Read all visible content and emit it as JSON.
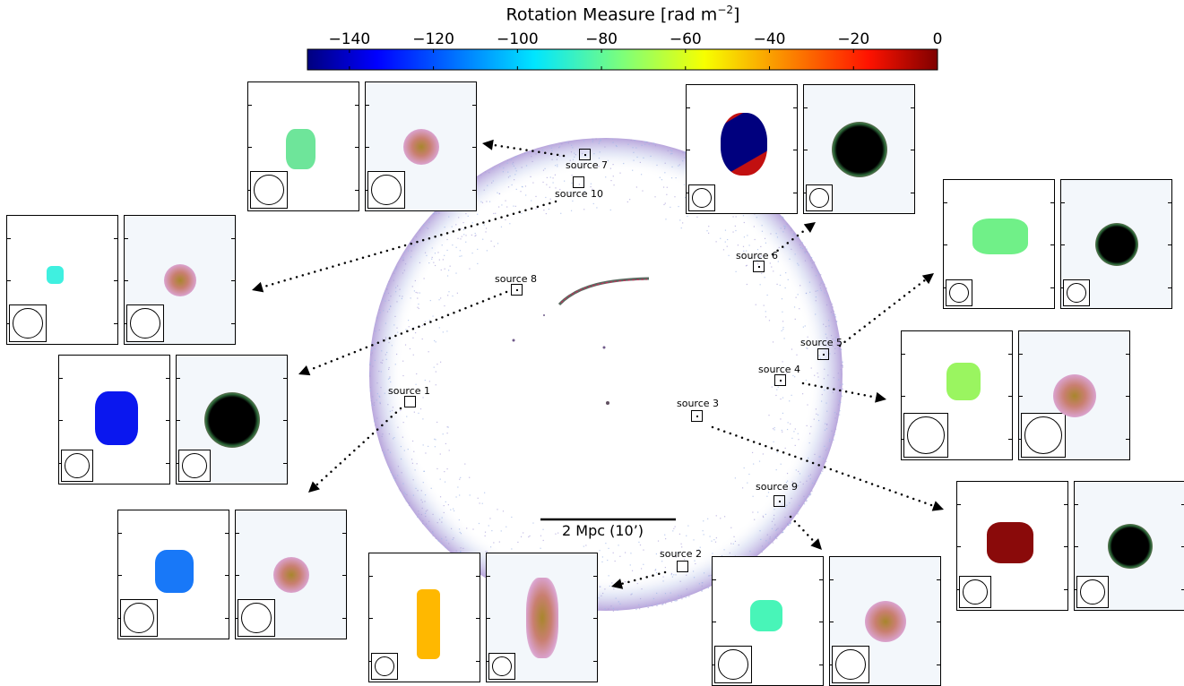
{
  "colorbar": {
    "title": "Rotation Measure [rad m",
    "title_sup": "−2",
    "title_end": "]",
    "ticks": [
      "−140",
      "−120",
      "−100",
      "−80",
      "−60",
      "−40",
      "−20",
      "0"
    ],
    "range": [
      -150,
      0
    ],
    "colormap": "jet"
  },
  "scale_bar": {
    "label": "2 Mpc (10’)"
  },
  "sources": [
    {
      "label": "source 7",
      "rm_color": "#6ee59a"
    },
    {
      "label": "source 10",
      "rm_color": "#3ff0e0"
    },
    {
      "label": "source 6",
      "rm_color": "#00007e"
    },
    {
      "label": "source 8",
      "rm_color": "#0a17ef"
    },
    {
      "label": "source 5",
      "rm_color": "#70f088"
    },
    {
      "label": "source 4",
      "rm_color": "#9af560"
    },
    {
      "label": "source 1",
      "rm_color": "#1878f8"
    },
    {
      "label": "source 3",
      "rm_color": "#8a0a0a"
    },
    {
      "label": "source 9",
      "rm_color": "#48f5b8"
    },
    {
      "label": "source 2",
      "rm_color": "#ffb800"
    }
  ]
}
